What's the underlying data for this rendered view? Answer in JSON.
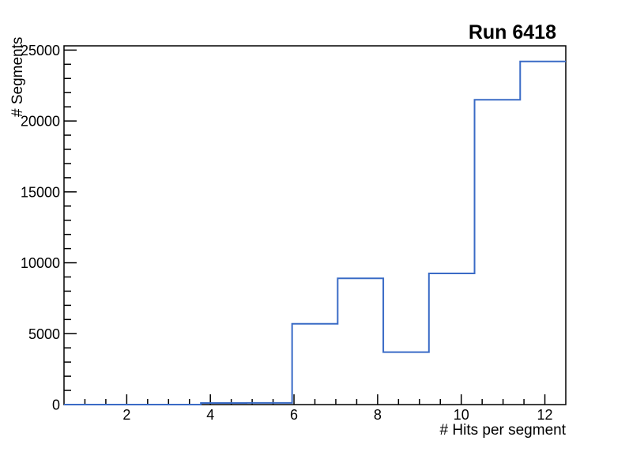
{
  "page": {
    "background_color": "#ffffff"
  },
  "chart_data": {
    "type": "bar",
    "subtype": "step-histogram",
    "title": "Run 6418",
    "xlabel": "# Hits per segment",
    "ylabel": "# Segments",
    "xlim": [
      0.5,
      12.5
    ],
    "ylim": [
      0,
      25300
    ],
    "grid": false,
    "legend": false,
    "bin_edges": [
      0.5,
      1.591,
      2.682,
      3.773,
      4.864,
      5.955,
      7.045,
      8.136,
      9.227,
      10.318,
      11.409,
      12.5
    ],
    "values": [
      0,
      0,
      0,
      110,
      120,
      5700,
      8900,
      3700,
      9250,
      21500,
      24200
    ],
    "x_major_ticks": [
      2,
      4,
      6,
      8,
      10,
      12
    ],
    "x_minor_tick_step": 0.5,
    "y_major_ticks": [
      0,
      5000,
      10000,
      15000,
      20000,
      25000
    ],
    "y_minor_tick_step": 1000,
    "line_color": "#3a6bc6",
    "axis_color": "#000000",
    "text_color": "#000000"
  }
}
